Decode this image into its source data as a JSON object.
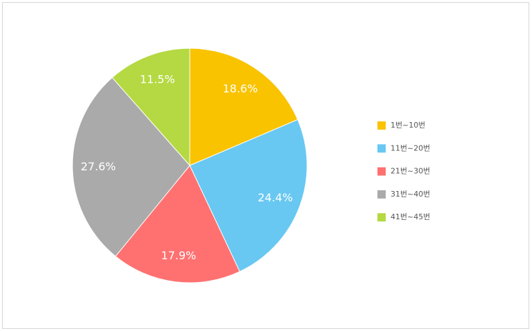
{
  "chart_data": {
    "type": "pie",
    "categories": [
      "1번~10번",
      "11번~20번",
      "21번~30번",
      "31번~40번",
      "41번~45번"
    ],
    "values": [
      18.6,
      24.4,
      17.9,
      27.6,
      11.5
    ],
    "value_labels": [
      "18.6%",
      "24.4%",
      "17.9%",
      "27.6%",
      "11.5%"
    ],
    "colors": [
      "#f9c300",
      "#68c8f2",
      "#ff7171",
      "#aaaaaa",
      "#b5d942"
    ],
    "legend": "right"
  }
}
